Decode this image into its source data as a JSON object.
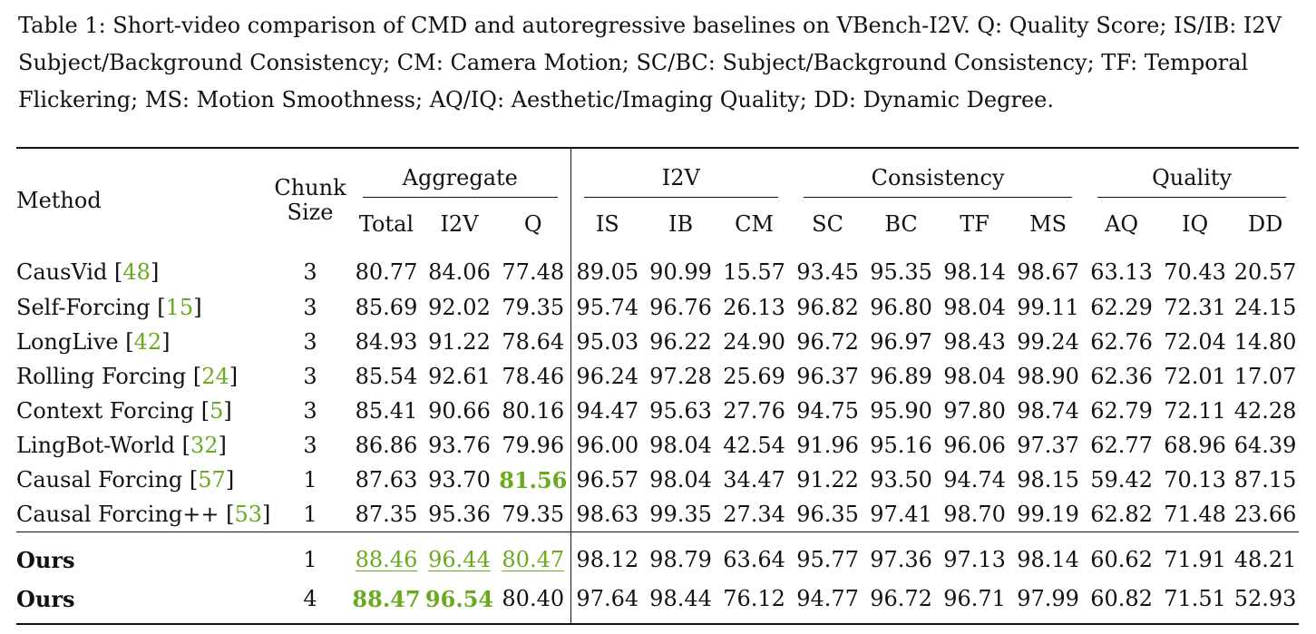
{
  "caption": "Table 1: Short-video comparison of CMD and autoregressive baselines on VBench-I2V. Q: Quality Score; IS/IB: I2V Subject/Background Consistency; CM: Camera Motion; SC/BC: Subject/Background Consistency; TF: Temporal Flickering; MS: Motion Smoothness; AQ/IQ: Aesthetic/Imaging Quality; DD: Dynamic Degree.",
  "header": {
    "method": "Method",
    "chunk_line1": "Chunk",
    "chunk_line2": "Size",
    "groups": [
      "Aggregate",
      "I2V",
      "Consistency",
      "Quality"
    ],
    "columns": [
      "Total",
      "I2V",
      "Q",
      "IS",
      "IB",
      "CM",
      "SC",
      "BC",
      "TF",
      "MS",
      "AQ",
      "IQ",
      "DD"
    ]
  },
  "rows": [
    {
      "method": "CausVid",
      "ref": "48",
      "chunk": "3",
      "values": [
        "80.77",
        "84.06",
        "77.48",
        "89.05",
        "90.99",
        "15.57",
        "93.45",
        "95.35",
        "98.14",
        "98.67",
        "63.13",
        "70.43",
        "20.57"
      ]
    },
    {
      "method": "Self-Forcing",
      "ref": "15",
      "chunk": "3",
      "values": [
        "85.69",
        "92.02",
        "79.35",
        "95.74",
        "96.76",
        "26.13",
        "96.82",
        "96.80",
        "98.04",
        "99.11",
        "62.29",
        "72.31",
        "24.15"
      ]
    },
    {
      "method": "LongLive",
      "ref": "42",
      "chunk": "3",
      "values": [
        "84.93",
        "91.22",
        "78.64",
        "95.03",
        "96.22",
        "24.90",
        "96.72",
        "96.97",
        "98.43",
        "99.24",
        "62.76",
        "72.04",
        "14.80"
      ]
    },
    {
      "method": "Rolling Forcing",
      "ref": "24",
      "chunk": "3",
      "values": [
        "85.54",
        "92.61",
        "78.46",
        "96.24",
        "97.28",
        "25.69",
        "96.37",
        "96.89",
        "98.04",
        "98.90",
        "62.36",
        "72.01",
        "17.07"
      ]
    },
    {
      "method": "Context Forcing",
      "ref": "5",
      "chunk": "3",
      "values": [
        "85.41",
        "90.66",
        "80.16",
        "94.47",
        "95.63",
        "27.76",
        "94.75",
        "95.90",
        "97.80",
        "98.74",
        "62.79",
        "72.11",
        "42.28"
      ]
    },
    {
      "method": "LingBot-World",
      "ref": "32",
      "chunk": "3",
      "values": [
        "86.86",
        "93.76",
        "79.96",
        "96.00",
        "98.04",
        "42.54",
        "91.96",
        "95.16",
        "96.06",
        "97.37",
        "62.77",
        "68.96",
        "64.39"
      ]
    },
    {
      "method": "Causal Forcing",
      "ref": "57",
      "chunk": "1",
      "values": [
        "87.63",
        "93.70",
        "81.56",
        "96.57",
        "98.04",
        "34.47",
        "91.22",
        "93.50",
        "94.74",
        "98.15",
        "59.42",
        "70.13",
        "87.15"
      ]
    },
    {
      "method": "Causal Forcing++",
      "ref": "53",
      "chunk": "1",
      "values": [
        "87.35",
        "95.36",
        "79.35",
        "98.63",
        "99.35",
        "27.34",
        "96.35",
        "97.41",
        "98.70",
        "99.19",
        "62.82",
        "71.48",
        "23.66"
      ]
    }
  ],
  "ours": [
    {
      "method": "Ours",
      "chunk": "1",
      "values": [
        "88.46",
        "96.44",
        "80.47",
        "98.12",
        "98.79",
        "63.64",
        "95.77",
        "97.36",
        "97.13",
        "98.14",
        "60.62",
        "71.91",
        "48.21"
      ]
    },
    {
      "method": "Ours",
      "chunk": "4",
      "values": [
        "88.47",
        "96.54",
        "80.40",
        "97.64",
        "98.44",
        "76.12",
        "94.77",
        "96.72",
        "96.71",
        "97.99",
        "60.82",
        "71.51",
        "52.93"
      ]
    }
  ],
  "highlights": {
    "best": [
      [
        6,
        2
      ],
      [
        9,
        0
      ],
      [
        9,
        1
      ]
    ],
    "second": [
      [
        8,
        0
      ],
      [
        8,
        1
      ],
      [
        8,
        2
      ]
    ]
  },
  "colors": {
    "highlight": "#6aaa1e",
    "text": "#111111"
  }
}
